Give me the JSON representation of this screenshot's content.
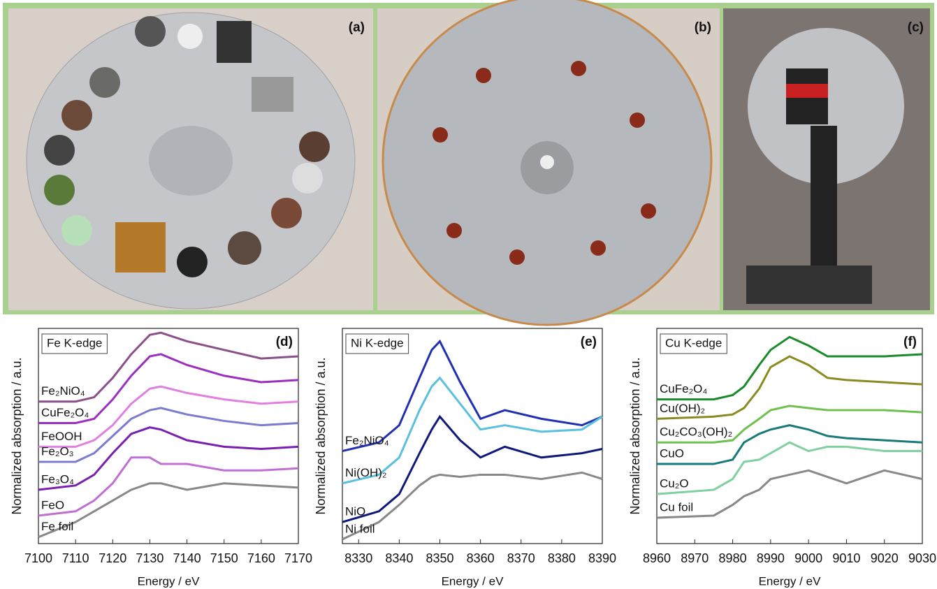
{
  "photos": [
    {
      "label": "(a)"
    },
    {
      "label": "(b)"
    },
    {
      "label": "(c)"
    }
  ],
  "chart_data": [
    {
      "type": "line",
      "panel": "(d)",
      "edge": "Fe K-edge",
      "xlabel": "Energy / eV",
      "ylabel": "Normalized absorption / a.u.",
      "x": [
        7100,
        7110,
        7115,
        7120,
        7125,
        7130,
        7133,
        7140,
        7150,
        7160,
        7170
      ],
      "xlim": [
        7100,
        7170
      ],
      "xticks": [
        7100,
        7110,
        7120,
        7130,
        7140,
        7150,
        7160,
        7170
      ],
      "ylim": [
        0,
        100
      ],
      "series": [
        {
          "name": "Fe₂NiO₄",
          "color": "#8b4f8b",
          "values": [
            66,
            66,
            68,
            77,
            88,
            97,
            98,
            94,
            90,
            86,
            87
          ]
        },
        {
          "name": "CuFe₂O₄",
          "color": "#9b30c0",
          "values": [
            56,
            56,
            58,
            67,
            78,
            87,
            88,
            83,
            78,
            75,
            76
          ]
        },
        {
          "name": "FeOOH",
          "color": "#e080e0",
          "values": [
            45,
            45,
            48,
            55,
            65,
            72,
            73,
            70,
            67,
            65,
            66
          ]
        },
        {
          "name": "Fe₂O₃",
          "color": "#7b7bd0",
          "values": [
            38,
            38,
            42,
            50,
            58,
            62,
            63,
            60,
            57,
            55,
            56
          ]
        },
        {
          "name": "Fe₃O₄",
          "color": "#7a20b0",
          "values": [
            25,
            27,
            32,
            42,
            51,
            54,
            53,
            48,
            45,
            44,
            45
          ]
        },
        {
          "name": "FeO",
          "color": "#c070d0",
          "values": [
            13,
            15,
            20,
            28,
            40,
            40,
            37,
            37,
            34,
            34,
            35
          ]
        },
        {
          "name": "Fe foil",
          "color": "#888888",
          "values": [
            3,
            10,
            15,
            20,
            25,
            28,
            28,
            25,
            28,
            27,
            26
          ]
        }
      ]
    },
    {
      "type": "line",
      "panel": "(e)",
      "edge": "Ni K-edge",
      "xlabel": "Energy / eV",
      "ylabel": "Normalized absorption / a.u.",
      "x": [
        8326,
        8335,
        8340,
        8345,
        8348,
        8350,
        8355,
        8360,
        8366,
        8375,
        8385,
        8390
      ],
      "xlim": [
        8326,
        8390
      ],
      "xticks": [
        8330,
        8340,
        8350,
        8360,
        8370,
        8380,
        8390
      ],
      "ylim": [
        0,
        100
      ],
      "series": [
        {
          "name": "Fe₂NiO₄",
          "color": "#2030b0",
          "values": [
            43,
            47,
            55,
            77,
            90,
            94,
            75,
            58,
            62,
            58,
            55,
            59
          ]
        },
        {
          "name": "Ni(OH)₂",
          "color": "#5bc0e0",
          "values": [
            28,
            32,
            40,
            62,
            73,
            77,
            65,
            53,
            55,
            52,
            53,
            59
          ]
        },
        {
          "name": "NiO",
          "color": "#101878",
          "values": [
            10,
            15,
            23,
            42,
            53,
            59,
            48,
            40,
            45,
            40,
            42,
            44
          ]
        },
        {
          "name": "Ni foil",
          "color": "#888888",
          "values": [
            2,
            10,
            18,
            27,
            31,
            32,
            31,
            32,
            32,
            30,
            33,
            30
          ]
        }
      ]
    },
    {
      "type": "line",
      "panel": "(f)",
      "edge": "Cu K-edge",
      "xlabel": "Energy / eV",
      "ylabel": "Normalized absorption / a.u.",
      "x": [
        8960,
        8975,
        8980,
        8983,
        8987,
        8990,
        8995,
        9000,
        9005,
        9010,
        9020,
        9030
      ],
      "xlim": [
        8960,
        9030
      ],
      "xticks": [
        8960,
        8970,
        8980,
        8990,
        9000,
        9010,
        9020,
        9030
      ],
      "ylim": [
        0,
        100
      ],
      "series": [
        {
          "name": "CuFe₂O₄",
          "color": "#1a8a2a",
          "values": [
            67,
            67,
            69,
            73,
            83,
            90,
            96,
            92,
            87,
            87,
            87,
            88
          ]
        },
        {
          "name": "Cu(OH)₂",
          "color": "#8a8a20",
          "values": [
            58,
            59,
            60,
            63,
            72,
            82,
            87,
            83,
            77,
            76,
            75,
            74
          ]
        },
        {
          "name": "Cu₂CO₃(OH)₂",
          "color": "#70c050",
          "values": [
            47,
            47,
            48,
            53,
            58,
            62,
            64,
            63,
            62,
            62,
            62,
            61
          ]
        },
        {
          "name": "CuO",
          "color": "#1a7a7a",
          "values": [
            37,
            37,
            39,
            47,
            51,
            53,
            55,
            53,
            50,
            49,
            48,
            47
          ]
        },
        {
          "name": "Cu₂O",
          "color": "#80d0a0",
          "values": [
            23,
            25,
            30,
            38,
            39,
            42,
            47,
            43,
            45,
            45,
            43,
            43
          ]
        },
        {
          "name": "Cu foil",
          "color": "#888888",
          "values": [
            12,
            13,
            18,
            22,
            25,
            30,
            32,
            34,
            31,
            28,
            34,
            30
          ]
        }
      ]
    }
  ]
}
